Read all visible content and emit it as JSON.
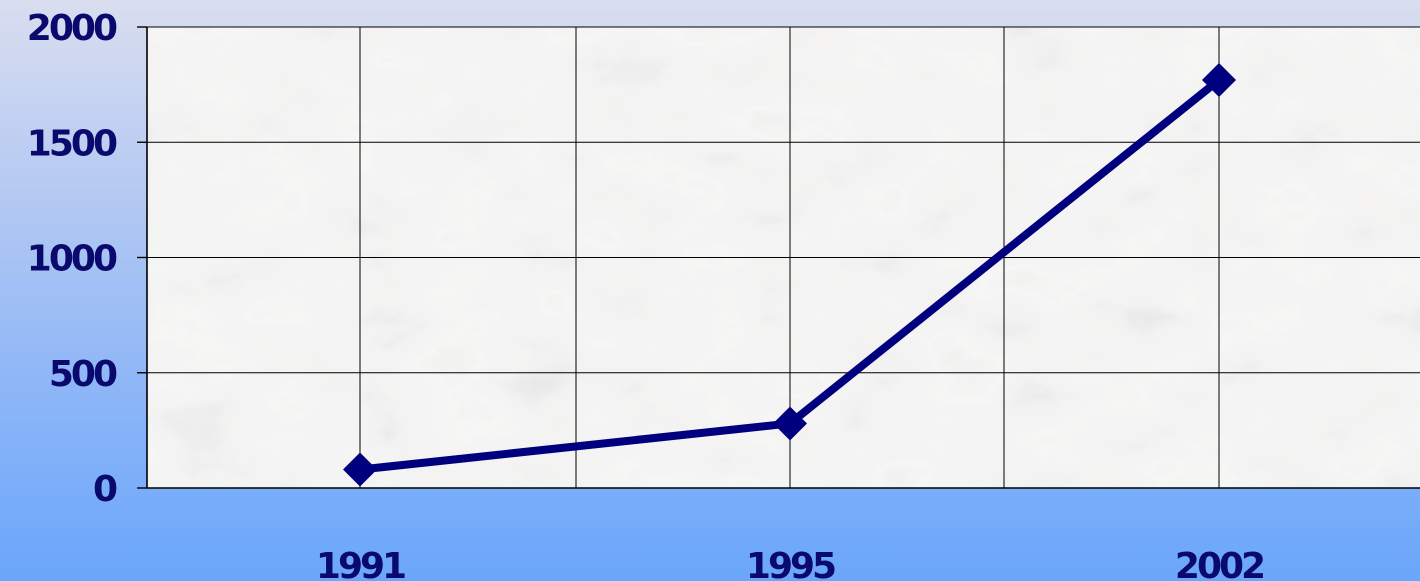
{
  "colors": {
    "series": "#00007f",
    "text": "#0a0a6e",
    "grid": "#000000",
    "plot_background": "#ecebe9"
  },
  "chart_data": {
    "type": "line",
    "title": "",
    "xlabel": "",
    "ylabel": "",
    "x": [
      "1991",
      "1995",
      "2002"
    ],
    "x_tick_labels": [
      "1991",
      "1995",
      "2002"
    ],
    "y_tick_labels": [
      "0",
      "500",
      "1000",
      "1500",
      "2000"
    ],
    "ylim": [
      0,
      2000
    ],
    "grid": true,
    "legend": "none",
    "marker": "diamond",
    "series": [
      {
        "values": [
          80,
          280,
          1770
        ]
      }
    ]
  }
}
